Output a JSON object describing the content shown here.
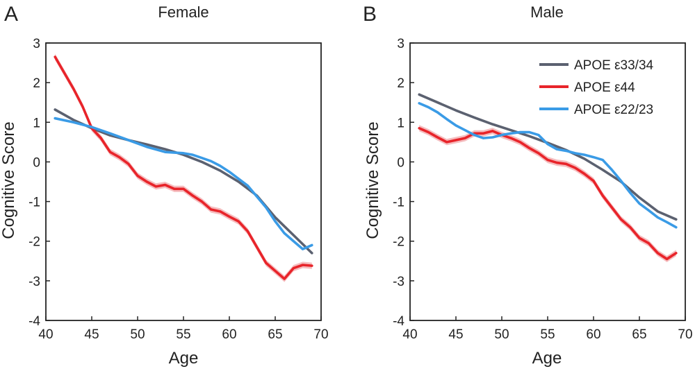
{
  "figure": {
    "panels": [
      {
        "letter": "A",
        "title": "Female",
        "xlabel": "Age",
        "ylabel": "Cognitive Score",
        "xlim": [
          40,
          70
        ],
        "ylim": [
          -4,
          3
        ],
        "xticks": [
          40,
          45,
          50,
          55,
          60,
          65,
          70
        ],
        "yticks": [
          -4,
          -3,
          -2,
          -1,
          0,
          1,
          2,
          3
        ],
        "show_legend": false
      },
      {
        "letter": "B",
        "title": "Male",
        "xlabel": "Age",
        "ylabel": "Cognitive Score",
        "xlim": [
          40,
          70
        ],
        "ylim": [
          -4,
          3
        ],
        "xticks": [
          40,
          45,
          50,
          55,
          60,
          65,
          70
        ],
        "yticks": [
          -4,
          -3,
          -2,
          -1,
          0,
          1,
          2,
          3
        ],
        "show_legend": true
      }
    ],
    "legend": {
      "placement": "top-right",
      "entries": [
        "APOE ε33/34",
        "APOE ε44",
        "APOE ε22/23"
      ]
    }
  },
  "series_colors": {
    "APOE ε33/34": "#5b6170",
    "APOE ε44": "#e8242a",
    "APOE ε22/23": "#3a9be6",
    "ci_band": "#f2a7aa"
  },
  "chart_data": [
    {
      "type": "line",
      "title": "Female",
      "xlabel": "Age",
      "ylabel": "Cognitive Score",
      "xlim": [
        40,
        70
      ],
      "ylim": [
        -4,
        3
      ],
      "series": [
        {
          "name": "APOE ε33/34",
          "x": [
            41,
            43,
            45,
            47,
            49,
            51,
            53,
            55,
            57,
            59,
            61,
            63,
            65,
            67,
            69
          ],
          "y": [
            1.32,
            1.06,
            0.85,
            0.67,
            0.55,
            0.44,
            0.32,
            0.18,
            0.0,
            -0.22,
            -0.5,
            -0.85,
            -1.4,
            -1.85,
            -2.3
          ]
        },
        {
          "name": "APOE ε44",
          "ci": 0.08,
          "x": [
            41,
            42,
            43,
            44,
            45,
            46,
            47,
            48,
            49,
            50,
            51,
            52,
            53,
            54,
            55,
            56,
            57,
            58,
            59,
            60,
            61,
            62,
            63,
            64,
            65,
            66,
            67,
            68,
            69
          ],
          "y": [
            2.65,
            2.25,
            1.85,
            1.4,
            0.85,
            0.6,
            0.25,
            0.12,
            -0.05,
            -0.35,
            -0.5,
            -0.62,
            -0.58,
            -0.68,
            -0.68,
            -0.85,
            -1.0,
            -1.2,
            -1.25,
            -1.38,
            -1.5,
            -1.75,
            -2.15,
            -2.55,
            -2.75,
            -2.95,
            -2.68,
            -2.6,
            -2.62
          ]
        },
        {
          "name": "APOE ε22/23",
          "x": [
            41,
            43,
            45,
            47,
            49,
            51,
            53,
            55,
            56,
            57,
            58,
            59,
            60,
            62,
            64,
            65,
            66,
            67,
            68,
            69
          ],
          "y": [
            1.1,
            1.0,
            0.88,
            0.72,
            0.55,
            0.38,
            0.25,
            0.22,
            0.18,
            0.1,
            0.02,
            -0.1,
            -0.25,
            -0.6,
            -1.15,
            -1.5,
            -1.8,
            -2.0,
            -2.2,
            -2.1
          ]
        }
      ]
    },
    {
      "type": "line",
      "title": "Male",
      "xlabel": "Age",
      "ylabel": "Cognitive Score",
      "xlim": [
        40,
        70
      ],
      "ylim": [
        -4,
        3
      ],
      "series": [
        {
          "name": "APOE ε33/34",
          "x": [
            41,
            43,
            45,
            47,
            49,
            51,
            53,
            55,
            57,
            59,
            61,
            63,
            65,
            67,
            69
          ],
          "y": [
            1.7,
            1.5,
            1.3,
            1.12,
            0.95,
            0.8,
            0.65,
            0.48,
            0.3,
            0.08,
            -0.2,
            -0.5,
            -0.9,
            -1.25,
            -1.45
          ]
        },
        {
          "name": "APOE ε44",
          "ci": 0.08,
          "x": [
            41,
            42,
            43,
            44,
            45,
            46,
            47,
            48,
            49,
            50,
            51,
            52,
            53,
            54,
            55,
            56,
            57,
            58,
            59,
            60,
            61,
            62,
            63,
            64,
            65,
            66,
            67,
            68,
            69
          ],
          "y": [
            0.85,
            0.75,
            0.62,
            0.5,
            0.55,
            0.6,
            0.72,
            0.72,
            0.78,
            0.68,
            0.6,
            0.5,
            0.35,
            0.22,
            0.05,
            -0.02,
            -0.05,
            -0.15,
            -0.3,
            -0.48,
            -0.85,
            -1.15,
            -1.45,
            -1.65,
            -1.92,
            -2.05,
            -2.3,
            -2.45,
            -2.3
          ]
        },
        {
          "name": "APOE ε22/23",
          "x": [
            41,
            42,
            43,
            44,
            45,
            46,
            47,
            48,
            49,
            50,
            51,
            52,
            53,
            54,
            55,
            56,
            57,
            58,
            59,
            60,
            61,
            62,
            63,
            64,
            65,
            66,
            67,
            68,
            69
          ],
          "y": [
            1.48,
            1.38,
            1.25,
            1.08,
            0.92,
            0.8,
            0.68,
            0.6,
            0.62,
            0.68,
            0.72,
            0.75,
            0.75,
            0.68,
            0.45,
            0.32,
            0.28,
            0.22,
            0.18,
            0.12,
            0.05,
            -0.2,
            -0.48,
            -0.78,
            -1.05,
            -1.22,
            -1.4,
            -1.52,
            -1.65
          ]
        }
      ]
    }
  ]
}
